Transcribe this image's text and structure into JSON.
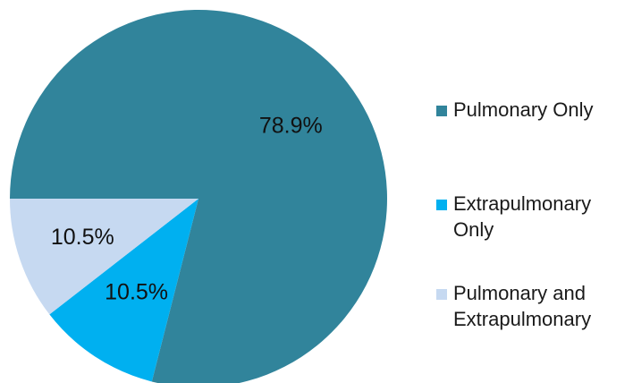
{
  "chart_data": {
    "type": "pie",
    "title": "",
    "slices": [
      {
        "name": "Pulmonary Only",
        "value": 78.9,
        "label": "78.9%",
        "color": "#31849B"
      },
      {
        "name": "Extrapulmonary Only",
        "value": 10.5,
        "label": "10.5%",
        "color": "#00B0F0"
      },
      {
        "name": "Pulmonary and Extrapulmonary",
        "value": 10.5,
        "label": "10.5%",
        "color": "#C6D9F1"
      }
    ],
    "legend": {
      "placement": "right",
      "entries": [
        "Pulmonary Only",
        "Extrapulmonary Only",
        "Pulmonary and Extrapulmonary"
      ]
    },
    "start_direction": "9 o'clock",
    "direction": "clockwise"
  }
}
